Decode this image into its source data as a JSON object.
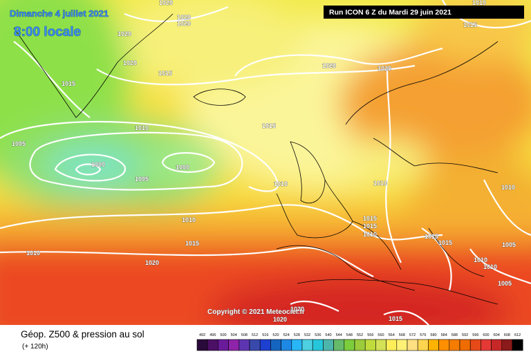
{
  "header": {
    "date": "Dimanche 4 juillet 2021",
    "time": "8:00 locale",
    "run": "Run ICON 6 Z du Mardi 29 juin 2021"
  },
  "copyright": "Copyright © 2021 Meteociel.fr",
  "footer": {
    "title": "Géop. Z500 & pression au sol",
    "lead": "(+ 120h)"
  },
  "scale": [
    492,
    496,
    500,
    504,
    508,
    512,
    516,
    520,
    524,
    528,
    532,
    536,
    540,
    544,
    548,
    552,
    556,
    560,
    564,
    568,
    572,
    576,
    580,
    584,
    588,
    592,
    596,
    600,
    604,
    608,
    612
  ],
  "isobar_labels": [
    1020,
    1020,
    1020,
    1020,
    1020,
    1015,
    1015,
    1020,
    1020,
    1015,
    1010,
    1010,
    1015,
    1005,
    1000,
    1000,
    1005,
    1010,
    1010,
    1010,
    1010,
    1015,
    1015,
    1015,
    1010,
    1015,
    1015,
    1010,
    1005,
    1020,
    1010,
    1010,
    1005,
    1015,
    1020,
    1020
  ]
}
